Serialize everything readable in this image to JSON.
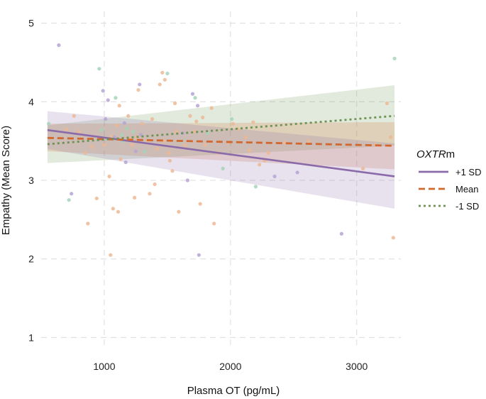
{
  "chart_data": {
    "type": "line",
    "xlabel": "Plasma OT (pg/mL)",
    "ylabel": "Empathy (Mean Score)",
    "xlim": [
      500,
      3350
    ],
    "ylim": [
      0.85,
      5.15
    ],
    "x_ticks": [
      1000,
      2000,
      3000
    ],
    "x_tick_labels": [
      "1000",
      "2000",
      "3000"
    ],
    "y_ticks": [
      1,
      2,
      3,
      4,
      5
    ],
    "y_tick_labels": [
      "1",
      "2",
      "3",
      "4",
      "5"
    ],
    "grid": true,
    "legend": {
      "title_italic": "OXTR",
      "title_suffix": "m",
      "placement": "right"
    },
    "series": [
      {
        "name": "+1 SD",
        "color": "#8a6aa8",
        "dash": "solid",
        "x": [
          550,
          3300
        ],
        "y": [
          3.64,
          3.05
        ],
        "ci_low": [
          3.4,
          2.64
        ],
        "ci_high": [
          3.88,
          3.47
        ]
      },
      {
        "name": "Mean",
        "color": "#d0682f",
        "dash": "dashed",
        "x": [
          550,
          3300
        ],
        "y": [
          3.54,
          3.44
        ],
        "ci_low": [
          3.37,
          3.14
        ],
        "ci_high": [
          3.72,
          3.74
        ]
      },
      {
        "name": "-1 SD",
        "color": "#6e9455",
        "dash": "dotted",
        "x": [
          550,
          3300
        ],
        "y": [
          3.46,
          3.82
        ],
        "ci_low": [
          3.22,
          3.44
        ],
        "ci_high": [
          3.7,
          4.21
        ]
      }
    ],
    "points": [
      {
        "x": 640,
        "y": 4.72,
        "g": 0
      },
      {
        "x": 560,
        "y": 3.72,
        "g": 2
      },
      {
        "x": 700,
        "y": 3.65,
        "g": 1
      },
      {
        "x": 720,
        "y": 2.75,
        "g": 2
      },
      {
        "x": 740,
        "y": 2.83,
        "g": 0
      },
      {
        "x": 760,
        "y": 3.82,
        "g": 1
      },
      {
        "x": 800,
        "y": 3.62,
        "g": 1
      },
      {
        "x": 850,
        "y": 3.35,
        "g": 1
      },
      {
        "x": 870,
        "y": 2.45,
        "g": 1
      },
      {
        "x": 900,
        "y": 3.43,
        "g": 1
      },
      {
        "x": 940,
        "y": 2.77,
        "g": 1
      },
      {
        "x": 960,
        "y": 4.42,
        "g": 2
      },
      {
        "x": 980,
        "y": 3.64,
        "g": 2
      },
      {
        "x": 990,
        "y": 4.14,
        "g": 0
      },
      {
        "x": 1000,
        "y": 3.45,
        "g": 1
      },
      {
        "x": 1010,
        "y": 3.78,
        "g": 0
      },
      {
        "x": 1030,
        "y": 4.02,
        "g": 0
      },
      {
        "x": 1040,
        "y": 3.05,
        "g": 1
      },
      {
        "x": 1050,
        "y": 2.05,
        "g": 1
      },
      {
        "x": 1060,
        "y": 3.56,
        "g": 1
      },
      {
        "x": 1070,
        "y": 2.64,
        "g": 1
      },
      {
        "x": 1080,
        "y": 3.55,
        "g": 0
      },
      {
        "x": 1090,
        "y": 4.05,
        "g": 2
      },
      {
        "x": 1100,
        "y": 3.7,
        "g": 1
      },
      {
        "x": 1110,
        "y": 2.6,
        "g": 1
      },
      {
        "x": 1120,
        "y": 3.95,
        "g": 1
      },
      {
        "x": 1130,
        "y": 3.27,
        "g": 1
      },
      {
        "x": 1140,
        "y": 3.58,
        "g": 2
      },
      {
        "x": 1150,
        "y": 3.5,
        "g": 2
      },
      {
        "x": 1160,
        "y": 3.73,
        "g": 0
      },
      {
        "x": 1170,
        "y": 3.23,
        "g": 0
      },
      {
        "x": 1180,
        "y": 3.66,
        "g": 2
      },
      {
        "x": 1190,
        "y": 3.82,
        "g": 1
      },
      {
        "x": 1200,
        "y": 3.53,
        "g": 1
      },
      {
        "x": 1220,
        "y": 3.45,
        "g": 1
      },
      {
        "x": 1230,
        "y": 3.62,
        "g": 2
      },
      {
        "x": 1240,
        "y": 2.78,
        "g": 1
      },
      {
        "x": 1250,
        "y": 3.37,
        "g": 0
      },
      {
        "x": 1260,
        "y": 3.55,
        "g": 1
      },
      {
        "x": 1270,
        "y": 4.15,
        "g": 1
      },
      {
        "x": 1280,
        "y": 4.22,
        "g": 0
      },
      {
        "x": 1290,
        "y": 3.58,
        "g": 0
      },
      {
        "x": 1300,
        "y": 3.72,
        "g": 1
      },
      {
        "x": 1320,
        "y": 3.37,
        "g": 2
      },
      {
        "x": 1340,
        "y": 3.5,
        "g": 1
      },
      {
        "x": 1360,
        "y": 2.83,
        "g": 1
      },
      {
        "x": 1380,
        "y": 3.78,
        "g": 1
      },
      {
        "x": 1400,
        "y": 2.95,
        "g": 1
      },
      {
        "x": 1420,
        "y": 3.4,
        "g": 1
      },
      {
        "x": 1440,
        "y": 4.22,
        "g": 1
      },
      {
        "x": 1460,
        "y": 4.37,
        "g": 1
      },
      {
        "x": 1470,
        "y": 3.5,
        "g": 1
      },
      {
        "x": 1480,
        "y": 4.28,
        "g": 1
      },
      {
        "x": 1500,
        "y": 4.36,
        "g": 2
      },
      {
        "x": 1510,
        "y": 3.35,
        "g": 1
      },
      {
        "x": 1520,
        "y": 3.25,
        "g": 1
      },
      {
        "x": 1540,
        "y": 3.12,
        "g": 1
      },
      {
        "x": 1560,
        "y": 3.98,
        "g": 1
      },
      {
        "x": 1570,
        "y": 3.62,
        "g": 1
      },
      {
        "x": 1590,
        "y": 2.6,
        "g": 1
      },
      {
        "x": 1610,
        "y": 3.5,
        "g": 2
      },
      {
        "x": 1620,
        "y": 3.6,
        "g": 0
      },
      {
        "x": 1640,
        "y": 3.45,
        "g": 1
      },
      {
        "x": 1660,
        "y": 3.0,
        "g": 0
      },
      {
        "x": 1680,
        "y": 3.82,
        "g": 1
      },
      {
        "x": 1700,
        "y": 4.1,
        "g": 0
      },
      {
        "x": 1710,
        "y": 3.62,
        "g": 1
      },
      {
        "x": 1720,
        "y": 4.05,
        "g": 2
      },
      {
        "x": 1730,
        "y": 3.75,
        "g": 1
      },
      {
        "x": 1740,
        "y": 3.95,
        "g": 0
      },
      {
        "x": 1750,
        "y": 2.05,
        "g": 0
      },
      {
        "x": 1760,
        "y": 2.7,
        "g": 1
      },
      {
        "x": 1780,
        "y": 3.8,
        "g": 1
      },
      {
        "x": 1800,
        "y": 3.45,
        "g": 1
      },
      {
        "x": 1820,
        "y": 3.6,
        "g": 2
      },
      {
        "x": 1850,
        "y": 3.92,
        "g": 1
      },
      {
        "x": 1870,
        "y": 2.45,
        "g": 1
      },
      {
        "x": 1900,
        "y": 3.35,
        "g": 1
      },
      {
        "x": 1940,
        "y": 3.15,
        "g": 2
      },
      {
        "x": 1980,
        "y": 3.48,
        "g": 1
      },
      {
        "x": 2010,
        "y": 3.78,
        "g": 2
      },
      {
        "x": 2020,
        "y": 3.72,
        "g": 1
      },
      {
        "x": 2060,
        "y": 3.65,
        "g": 1
      },
      {
        "x": 2120,
        "y": 3.55,
        "g": 1
      },
      {
        "x": 2150,
        "y": 3.38,
        "g": 1
      },
      {
        "x": 2180,
        "y": 3.74,
        "g": 1
      },
      {
        "x": 2200,
        "y": 2.92,
        "g": 2
      },
      {
        "x": 2230,
        "y": 3.2,
        "g": 1
      },
      {
        "x": 2270,
        "y": 3.25,
        "g": 1
      },
      {
        "x": 2300,
        "y": 3.35,
        "g": 1
      },
      {
        "x": 2350,
        "y": 3.05,
        "g": 0
      },
      {
        "x": 2430,
        "y": 3.48,
        "g": 1
      },
      {
        "x": 2530,
        "y": 3.1,
        "g": 0
      },
      {
        "x": 2620,
        "y": 3.5,
        "g": 1
      },
      {
        "x": 2880,
        "y": 2.32,
        "g": 0
      },
      {
        "x": 3050,
        "y": 3.15,
        "g": 1
      },
      {
        "x": 3150,
        "y": 3.45,
        "g": 1
      },
      {
        "x": 3270,
        "y": 3.55,
        "g": 1
      },
      {
        "x": 3290,
        "y": 2.27,
        "g": 1
      },
      {
        "x": 3300,
        "y": 4.55,
        "g": 2
      },
      {
        "x": 3240,
        "y": 3.98,
        "g": 1
      }
    ]
  },
  "colors": {
    "point_colors": [
      "#b5a5d4",
      "#ecb894",
      "#a4d4bb"
    ]
  }
}
